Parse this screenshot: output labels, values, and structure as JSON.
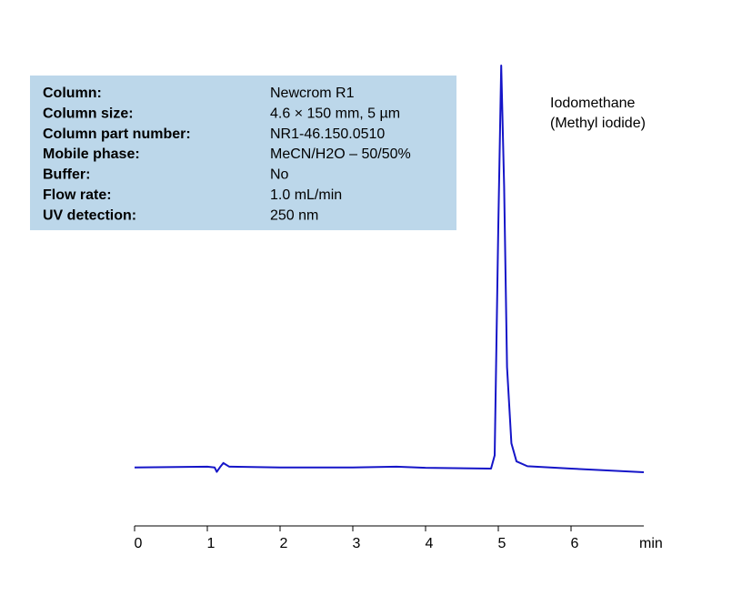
{
  "chart_data": {
    "type": "line",
    "info_panel": [
      {
        "label": "Column:",
        "value": "Newcrom R1"
      },
      {
        "label": "Column size:",
        "value": "4.6 × 150 mm, 5 µm"
      },
      {
        "label": "Column part number:",
        "value": "NR1-46.150.0510"
      },
      {
        "label": "Mobile phase:",
        "value": "MeCN/H2O – 50/50%"
      },
      {
        "label": "Buffer:",
        "value": "No"
      },
      {
        "label": "Flow rate:",
        "value": "1.0 mL/min"
      },
      {
        "label": "UV detection:",
        "value": "250 nm"
      }
    ],
    "annotation": [
      "Iodomethane",
      "(Methyl iodide)"
    ],
    "x_label": "min",
    "x": [
      0,
      1.0,
      1.1,
      1.13,
      1.18,
      1.22,
      1.3,
      2,
      3,
      3.6,
      4,
      4.9,
      4.95,
      5.0,
      5.04,
      5.08,
      5.12,
      5.18,
      5.25,
      5.4,
      6,
      7
    ],
    "values": [
      0,
      0.2,
      0,
      -1.1,
      0.2,
      1.1,
      0.2,
      0,
      0,
      0.2,
      -0.1,
      -0.3,
      3,
      60,
      100,
      70,
      25,
      6,
      1.5,
      0.3,
      -0.3,
      -1.2
    ],
    "color": "#1515c8",
    "xlim": [
      0,
      7
    ],
    "xticks": [
      0,
      1,
      2,
      3,
      4,
      5,
      6
    ]
  }
}
